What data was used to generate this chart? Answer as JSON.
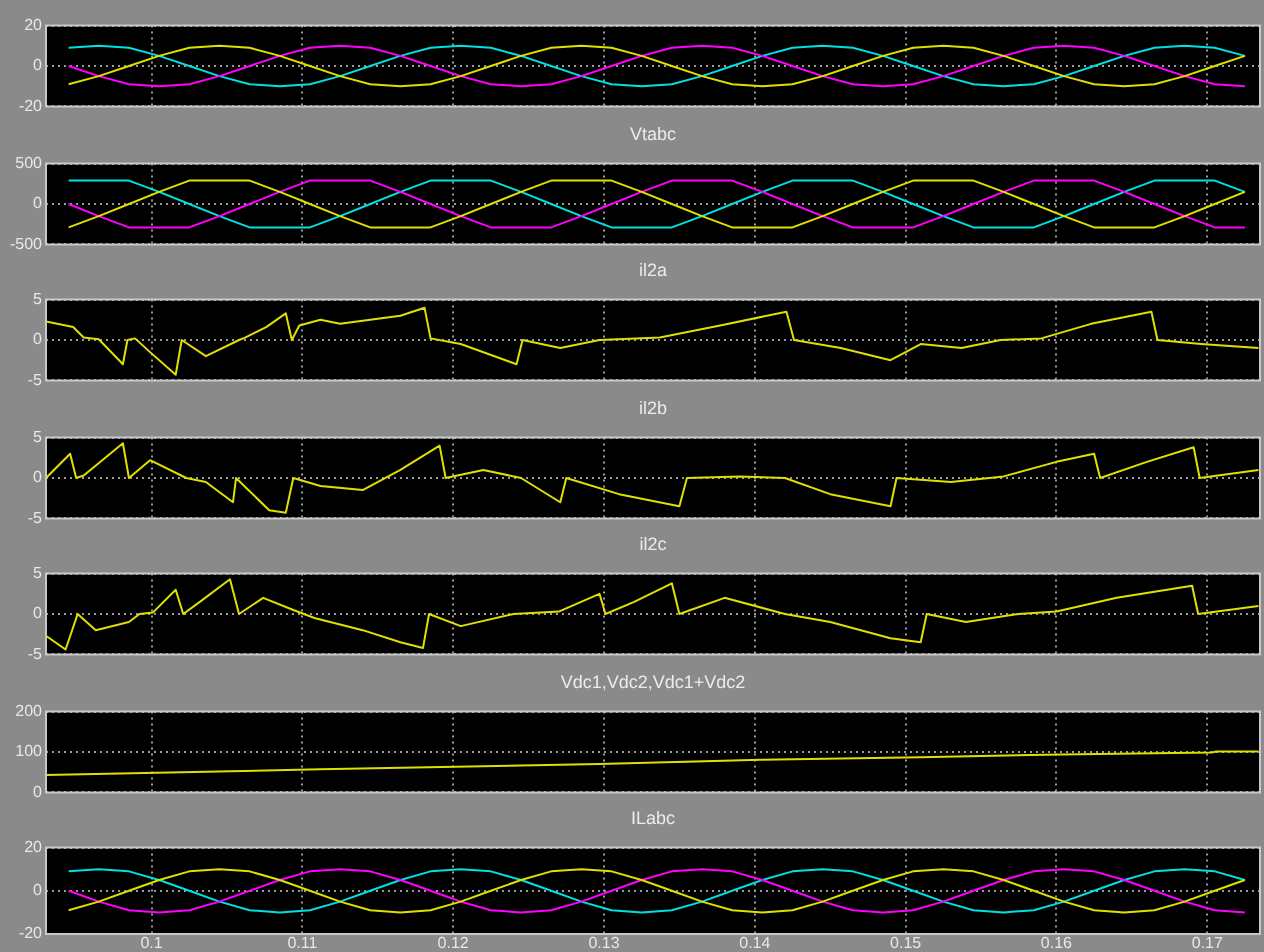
{
  "chart_data": [
    {
      "type": "line",
      "xlim": [
        0.093,
        0.1735
      ],
      "xticks": [
        0.1,
        0.11,
        0.12,
        0.13,
        0.14,
        0.15,
        0.16,
        0.17
      ],
      "ylim": [
        -20,
        20
      ],
      "yticks": [
        -20,
        0,
        20
      ],
      "grid": true,
      "tick_labels": "y",
      "x": [
        0.0945,
        0.0965,
        0.0985,
        0.1005,
        0.1025,
        0.1045,
        0.1065,
        0.1085,
        0.1105,
        0.1125,
        0.1145,
        0.1165,
        0.1185,
        0.1205,
        0.1225,
        0.1245,
        0.1265,
        0.1285,
        0.1305,
        0.1325,
        0.1345,
        0.1365,
        0.1385,
        0.1405,
        0.1425,
        0.1445,
        0.1465,
        0.1485,
        0.1505,
        0.1525,
        0.1545,
        0.1565,
        0.1585,
        0.1605,
        0.1625,
        0.1645,
        0.1665,
        0.1685,
        0.1705,
        0.1725
      ],
      "series": [
        {
          "color": "#e0e000",
          "values": [
            -9,
            -5,
            0,
            5,
            9,
            10,
            9,
            5,
            0,
            -5,
            -9,
            -10,
            -9,
            -5,
            0,
            5,
            9,
            10,
            9,
            5,
            0,
            -5,
            -9,
            -10,
            -9,
            -5,
            0,
            5,
            9,
            10,
            9,
            5,
            0,
            -5,
            -9,
            -10,
            -9,
            -5,
            0,
            5
          ]
        },
        {
          "color": "#ff00ff",
          "values": [
            0,
            -5,
            -9,
            -10,
            -9,
            -5,
            0,
            5,
            9,
            10,
            9,
            5,
            0,
            -5,
            -9,
            -10,
            -9,
            -5,
            0,
            5,
            9,
            10,
            9,
            5,
            0,
            -5,
            -9,
            -10,
            -9,
            -5,
            0,
            5,
            9,
            10,
            9,
            5,
            0,
            -5,
            -9,
            -10
          ]
        },
        {
          "color": "#00e0e0",
          "values": [
            9,
            10,
            9,
            5,
            0,
            -5,
            -9,
            -10,
            -9,
            -5,
            0,
            5,
            9,
            10,
            9,
            5,
            0,
            -5,
            -9,
            -10,
            -9,
            -5,
            0,
            5,
            9,
            10,
            9,
            5,
            0,
            -5,
            -9,
            -10,
            -9,
            -5,
            0,
            5,
            9,
            10,
            9,
            5
          ]
        }
      ]
    },
    {
      "type": "line",
      "title": "Vtabc",
      "xlim": [
        0.093,
        0.1735
      ],
      "xticks": [
        0.1,
        0.11,
        0.12,
        0.13,
        0.14,
        0.15,
        0.16,
        0.17
      ],
      "ylim": [
        -500,
        500
      ],
      "yticks": [
        -500,
        0,
        500
      ],
      "grid": true,
      "tick_labels": "y",
      "x": [
        0.0945,
        0.0965,
        0.0985,
        0.1005,
        0.1025,
        0.1045,
        0.1065,
        0.1085,
        0.1105,
        0.1125,
        0.1145,
        0.1165,
        0.1185,
        0.1205,
        0.1225,
        0.1245,
        0.1265,
        0.1285,
        0.1305,
        0.1325,
        0.1345,
        0.1365,
        0.1385,
        0.1405,
        0.1425,
        0.1445,
        0.1465,
        0.1485,
        0.1505,
        0.1525,
        0.1545,
        0.1565,
        0.1585,
        0.1605,
        0.1625,
        0.1645,
        0.1665,
        0.1685,
        0.1705,
        0.1725
      ],
      "series": [
        {
          "color": "#e0e000",
          "values": [
            -290,
            -150,
            0,
            150,
            290,
            290,
            290,
            150,
            0,
            -150,
            -290,
            -290,
            -290,
            -150,
            0,
            150,
            290,
            290,
            290,
            150,
            0,
            -150,
            -290,
            -290,
            -290,
            -150,
            0,
            150,
            290,
            290,
            290,
            150,
            0,
            -150,
            -290,
            -290,
            -290,
            -150,
            0,
            150
          ]
        },
        {
          "color": "#ff00ff",
          "values": [
            0,
            -150,
            -290,
            -290,
            -290,
            -150,
            0,
            150,
            290,
            290,
            290,
            150,
            0,
            -150,
            -290,
            -290,
            -290,
            -150,
            0,
            150,
            290,
            290,
            290,
            150,
            0,
            -150,
            -290,
            -290,
            -290,
            -150,
            0,
            150,
            290,
            290,
            290,
            150,
            0,
            -150,
            -290,
            -290
          ]
        },
        {
          "color": "#00e0e0",
          "values": [
            290,
            290,
            290,
            150,
            0,
            -150,
            -290,
            -290,
            -290,
            -150,
            0,
            150,
            290,
            290,
            290,
            150,
            0,
            -150,
            -290,
            -290,
            -290,
            -150,
            0,
            150,
            290,
            290,
            290,
            150,
            0,
            -150,
            -290,
            -290,
            -290,
            -150,
            0,
            150,
            290,
            290,
            290,
            150
          ]
        }
      ]
    },
    {
      "type": "line",
      "title": "il2a",
      "xlim": [
        0.093,
        0.1735
      ],
      "xticks": [
        0.1,
        0.11,
        0.12,
        0.13,
        0.14,
        0.15,
        0.16,
        0.17
      ],
      "ylim": [
        -5,
        5
      ],
      "yticks": [
        -5,
        0,
        5
      ],
      "grid": true,
      "tick_labels": "y",
      "color": "#e0e000",
      "x": [
        0.093,
        0.0948,
        0.0955,
        0.0965,
        0.0981,
        0.0984,
        0.0989,
        0.0999,
        0.1016,
        0.102,
        0.1036,
        0.1058,
        0.1062,
        0.1076,
        0.1089,
        0.1093,
        0.1098,
        0.1112,
        0.1125,
        0.1145,
        0.1165,
        0.1181,
        0.1185,
        0.1205,
        0.1242,
        0.1246,
        0.1271,
        0.1297,
        0.1337,
        0.1377,
        0.1421,
        0.1426,
        0.1457,
        0.149,
        0.151,
        0.1537,
        0.1563,
        0.159,
        0.1623,
        0.1663,
        0.1667,
        0.1696,
        0.1734
      ],
      "values": [
        2.3,
        1.6,
        0.3,
        0.1,
        -3,
        0,
        0.2,
        -1.5,
        -4.3,
        0,
        -2,
        0,
        0.3,
        1.6,
        3.3,
        0,
        1.8,
        2.5,
        2,
        2.5,
        3,
        4,
        0.2,
        -0.5,
        -3,
        0,
        -1,
        0,
        0.3,
        1.8,
        3.5,
        0,
        -1,
        -2.5,
        -0.5,
        -1,
        0,
        0.2,
        2,
        3.5,
        0,
        -0.5,
        -1
      ]
    },
    {
      "type": "line",
      "title": "il2b",
      "xlim": [
        0.093,
        0.1735
      ],
      "xticks": [
        0.1,
        0.11,
        0.12,
        0.13,
        0.14,
        0.15,
        0.16,
        0.17
      ],
      "ylim": [
        -5,
        5
      ],
      "yticks": [
        -5,
        0,
        5
      ],
      "grid": true,
      "tick_labels": "y",
      "color": "#e0e000",
      "x": [
        0.093,
        0.0946,
        0.095,
        0.0955,
        0.0981,
        0.0985,
        0.0999,
        0.1023,
        0.1036,
        0.1054,
        0.1056,
        0.1078,
        0.1089,
        0.1094,
        0.1112,
        0.114,
        0.1165,
        0.1191,
        0.1195,
        0.122,
        0.1245,
        0.1271,
        0.1275,
        0.131,
        0.135,
        0.1355,
        0.139,
        0.142,
        0.145,
        0.149,
        0.1494,
        0.153,
        0.1565,
        0.16,
        0.1625,
        0.1629,
        0.166,
        0.1691,
        0.1695,
        0.1734
      ],
      "values": [
        0,
        3,
        0,
        0.3,
        4.3,
        0,
        2.2,
        0,
        -0.5,
        -3,
        0,
        -4,
        -4.3,
        0,
        -1,
        -1.5,
        1,
        4,
        0,
        1,
        0,
        -3,
        0,
        -2,
        -3.5,
        0,
        0.2,
        0,
        -2,
        -3.5,
        0,
        -0.5,
        0.2,
        2,
        3,
        0,
        2,
        3.8,
        0,
        1
      ]
    },
    {
      "type": "line",
      "title": "il2c",
      "xlim": [
        0.093,
        0.1735
      ],
      "xticks": [
        0.1,
        0.11,
        0.12,
        0.13,
        0.14,
        0.15,
        0.16,
        0.17
      ],
      "ylim": [
        -5,
        5
      ],
      "yticks": [
        -5,
        0,
        5
      ],
      "grid": true,
      "tick_labels": "y",
      "color": "#e0e000",
      "x": [
        0.093,
        0.0943,
        0.0951,
        0.0963,
        0.0985,
        0.0992,
        0.1001,
        0.1016,
        0.1021,
        0.1032,
        0.1052,
        0.1058,
        0.1074,
        0.1094,
        0.1108,
        0.114,
        0.1165,
        0.118,
        0.1184,
        0.1205,
        0.124,
        0.127,
        0.1297,
        0.1301,
        0.132,
        0.1345,
        0.135,
        0.138,
        0.142,
        0.145,
        0.149,
        0.151,
        0.1514,
        0.154,
        0.1575,
        0.16,
        0.164,
        0.169,
        0.1694,
        0.1734
      ],
      "values": [
        -2.7,
        -4.4,
        0,
        -2,
        -1,
        0,
        0.2,
        3,
        0,
        1.5,
        4.3,
        0,
        2,
        0.5,
        -0.5,
        -2,
        -3.5,
        -4.2,
        0,
        -1.5,
        0,
        0.3,
        2.5,
        0,
        1.5,
        3.8,
        0,
        2,
        0,
        -1,
        -3,
        -3.5,
        0,
        -1,
        0,
        0.3,
        2,
        3.5,
        0,
        1
      ]
    },
    {
      "type": "line",
      "title": "Vdc1,Vdc2,Vdc1+Vdc2",
      "xlim": [
        0.093,
        0.1735
      ],
      "xticks": [
        0.1,
        0.11,
        0.12,
        0.13,
        0.14,
        0.15,
        0.16,
        0.17
      ],
      "ylim": [
        0,
        200
      ],
      "yticks": [
        0,
        100,
        200
      ],
      "grid": true,
      "tick_labels": "y",
      "color": "#e0e000",
      "x": [
        0.093,
        0.1112,
        0.1297,
        0.1404,
        0.151,
        0.1603,
        0.1703,
        0.1706,
        0.1734
      ],
      "values": [
        43,
        57,
        70,
        81,
        87,
        94,
        99,
        101,
        101
      ]
    },
    {
      "type": "line",
      "title": "ILabc",
      "xlim": [
        0.093,
        0.1735
      ],
      "xticks": [
        0.1,
        0.11,
        0.12,
        0.13,
        0.14,
        0.15,
        0.16,
        0.17
      ],
      "ylim": [
        -20,
        20
      ],
      "yticks": [
        -20,
        0,
        20
      ],
      "grid": true,
      "x": [
        0.0945,
        0.0965,
        0.0985,
        0.1005,
        0.1025,
        0.1045,
        0.1065,
        0.1085,
        0.1105,
        0.1125,
        0.1145,
        0.1165,
        0.1185,
        0.1205,
        0.1225,
        0.1245,
        0.1265,
        0.1285,
        0.1305,
        0.1325,
        0.1345,
        0.1365,
        0.1385,
        0.1405,
        0.1425,
        0.1445,
        0.1465,
        0.1485,
        0.1505,
        0.1525,
        0.1545,
        0.1565,
        0.1585,
        0.1605,
        0.1625,
        0.1645,
        0.1665,
        0.1685,
        0.1705,
        0.1725
      ],
      "series": [
        {
          "color": "#e0e000",
          "values": [
            -9,
            -5,
            0,
            5,
            9,
            10,
            9,
            5,
            0,
            -5,
            -9,
            -10,
            -9,
            -5,
            0,
            5,
            9,
            10,
            9,
            5,
            0,
            -5,
            -9,
            -10,
            -9,
            -5,
            0,
            5,
            9,
            10,
            9,
            5,
            0,
            -5,
            -9,
            -10,
            -9,
            -5,
            0,
            5
          ]
        },
        {
          "color": "#ff00ff",
          "values": [
            0,
            -5,
            -9,
            -10,
            -9,
            -5,
            0,
            5,
            9,
            10,
            9,
            5,
            0,
            -5,
            -9,
            -10,
            -9,
            -5,
            0,
            5,
            9,
            10,
            9,
            5,
            0,
            -5,
            -9,
            -10,
            -9,
            -5,
            0,
            5,
            9,
            10,
            9,
            5,
            0,
            -5,
            -9,
            -10
          ]
        },
        {
          "color": "#00e0e0",
          "values": [
            9,
            10,
            9,
            5,
            0,
            -5,
            -9,
            -10,
            -9,
            -5,
            0,
            5,
            9,
            10,
            9,
            5,
            0,
            -5,
            -9,
            -10,
            -9,
            -5,
            0,
            5,
            9,
            10,
            9,
            5,
            0,
            -5,
            -9,
            -10,
            -9,
            -5,
            0,
            5,
            9,
            10,
            9,
            5
          ]
        }
      ]
    }
  ]
}
